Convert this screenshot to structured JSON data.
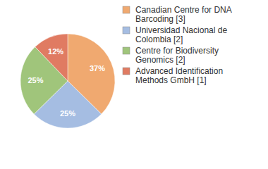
{
  "chart_data": {
    "type": "pie",
    "categories": [
      "Canadian Centre for DNA Barcoding [3]",
      "Universidad Nacional de Colombia [2]",
      "Centre for Biodiversity Genomics [2]",
      "Advanced Identification Methods GmbH [1]"
    ],
    "values": [
      37,
      25,
      25,
      12
    ],
    "value_labels": [
      "37%",
      "25%",
      "25%",
      "12%"
    ],
    "colors": [
      "#f0a970",
      "#a5bde2",
      "#a0c57b",
      "#e07b62"
    ],
    "data_labels": true,
    "legend": "top-right"
  }
}
